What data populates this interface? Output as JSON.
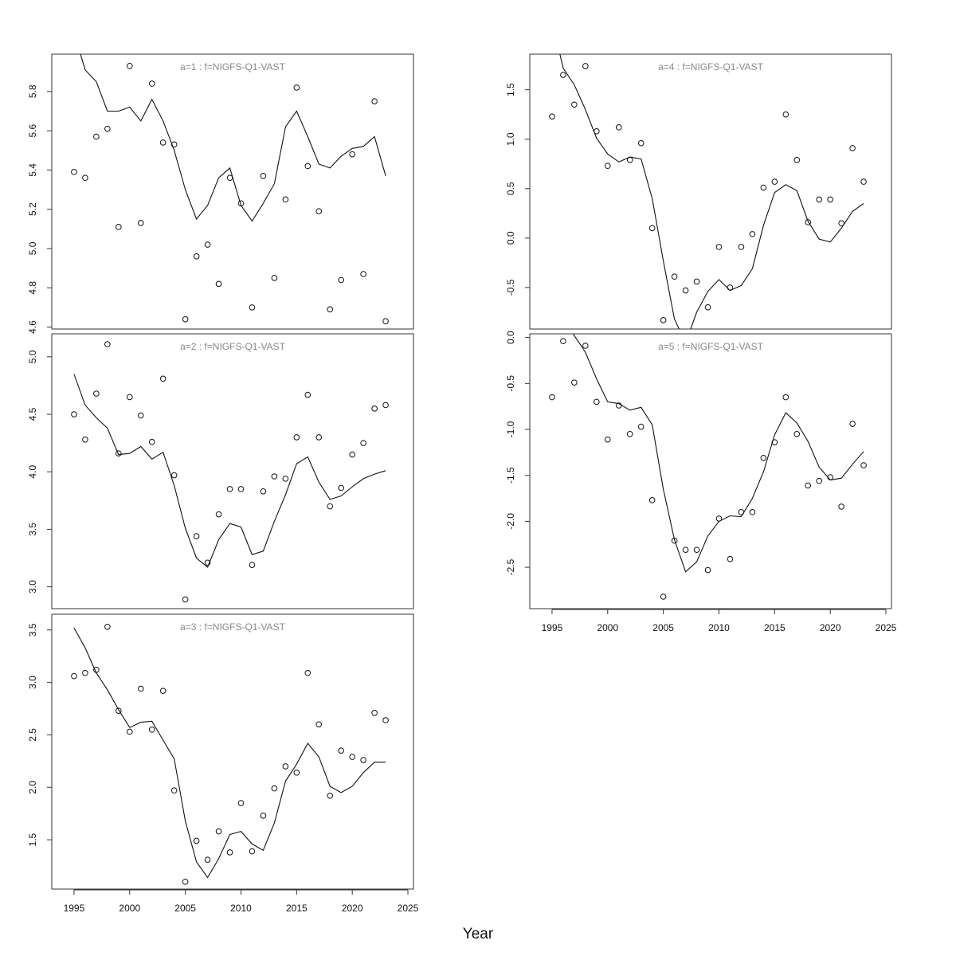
{
  "xlabel": "Year",
  "chart_data": [
    {
      "type": "scatter+line",
      "title": "a=1  :  f=NIGFS-Q1-VAST",
      "xlim": [
        1993,
        2025.5
      ],
      "ylim": [
        4.59,
        5.99
      ],
      "xticks": [
        1995,
        2000,
        2005,
        2010,
        2015,
        2020,
        2025
      ],
      "yticks": [
        "4.6",
        "4.8",
        "5.0",
        "5.2",
        "5.4",
        "5.6",
        "5.8"
      ],
      "series": [
        {
          "kind": "observed",
          "x": [
            1995,
            1996,
            1997,
            1998,
            1999,
            2000,
            2001,
            2002,
            2003,
            2004,
            2005,
            2006,
            2007,
            2008,
            2009,
            2010,
            2011,
            2012,
            2013,
            2014,
            2015,
            2016,
            2017,
            2018,
            2019,
            2020,
            2021,
            2022,
            2023
          ],
          "values": [
            5.39,
            5.36,
            5.57,
            5.61,
            5.11,
            5.93,
            5.13,
            5.84,
            5.54,
            5.53,
            4.64,
            4.96,
            5.02,
            4.82,
            5.36,
            5.23,
            4.7,
            5.37,
            4.85,
            5.25,
            5.82,
            5.42,
            5.19,
            4.69,
            4.84,
            5.48,
            4.87,
            5.75,
            4.63
          ]
        },
        {
          "kind": "fitted",
          "x": [
            1995,
            1996,
            1997,
            1998,
            1999,
            2000,
            2001,
            2002,
            2003,
            2004,
            2005,
            2006,
            2007,
            2008,
            2009,
            2010,
            2011,
            2012,
            2013,
            2014,
            2015,
            2016,
            2017,
            2018,
            2019,
            2020,
            2021,
            2022,
            2023
          ],
          "values": [
            6.1,
            5.91,
            5.85,
            5.7,
            5.7,
            5.72,
            5.65,
            5.76,
            5.65,
            5.5,
            5.3,
            5.15,
            5.22,
            5.36,
            5.41,
            5.22,
            5.14,
            5.23,
            5.33,
            5.62,
            5.7,
            5.57,
            5.43,
            5.41,
            5.47,
            5.51,
            5.52,
            5.57,
            5.37
          ]
        }
      ]
    },
    {
      "type": "scatter+line",
      "title": "a=2  :  f=NIGFS-Q1-VAST",
      "xlim": [
        1993,
        2025.5
      ],
      "ylim": [
        2.81,
        5.2
      ],
      "xticks": [
        1995,
        2000,
        2005,
        2010,
        2015,
        2020,
        2025
      ],
      "yticks": [
        "3.0",
        "3.5",
        "4.0",
        "4.5",
        "5.0"
      ],
      "series": [
        {
          "kind": "observed",
          "x": [
            1995,
            1996,
            1997,
            1998,
            1999,
            2000,
            2001,
            2002,
            2003,
            2004,
            2005,
            2006,
            2007,
            2008,
            2009,
            2010,
            2011,
            2012,
            2013,
            2014,
            2015,
            2016,
            2017,
            2018,
            2019,
            2020,
            2021,
            2022,
            2023
          ],
          "values": [
            4.5,
            4.28,
            4.68,
            5.11,
            4.16,
            4.65,
            4.49,
            4.26,
            4.81,
            3.97,
            2.89,
            3.44,
            3.21,
            3.63,
            3.85,
            3.85,
            3.19,
            3.83,
            3.96,
            3.94,
            4.3,
            4.67,
            4.3,
            3.7,
            3.86,
            4.15,
            4.25,
            4.55,
            4.58
          ]
        },
        {
          "kind": "fitted",
          "x": [
            1995,
            1996,
            1997,
            1998,
            1999,
            2000,
            2001,
            2002,
            2003,
            2004,
            2005,
            2006,
            2007,
            2008,
            2009,
            2010,
            2011,
            2012,
            2013,
            2014,
            2015,
            2016,
            2017,
            2018,
            2019,
            2020,
            2021,
            2022,
            2023
          ],
          "values": [
            4.85,
            4.58,
            4.47,
            4.38,
            4.15,
            4.16,
            4.22,
            4.11,
            4.17,
            3.88,
            3.51,
            3.25,
            3.17,
            3.41,
            3.55,
            3.52,
            3.28,
            3.31,
            3.57,
            3.8,
            4.07,
            4.13,
            3.91,
            3.76,
            3.79,
            3.87,
            3.94,
            3.98,
            4.01
          ]
        }
      ]
    },
    {
      "type": "scatter+line",
      "title": "a=3  :  f=NIGFS-Q1-VAST",
      "xlim": [
        1993,
        2025.5
      ],
      "ylim": [
        1.03,
        3.65
      ],
      "xticks": [
        1995,
        2000,
        2005,
        2010,
        2015,
        2020,
        2025
      ],
      "yticks": [
        "1.5",
        "2.0",
        "2.5",
        "3.0",
        "3.5"
      ],
      "series": [
        {
          "kind": "observed",
          "x": [
            1995,
            1996,
            1997,
            1998,
            1999,
            2000,
            2001,
            2002,
            2003,
            2004,
            2005,
            2006,
            2007,
            2008,
            2009,
            2010,
            2011,
            2012,
            2013,
            2014,
            2015,
            2016,
            2017,
            2018,
            2019,
            2020,
            2021,
            2022,
            2023
          ],
          "values": [
            3.06,
            3.09,
            3.12,
            3.53,
            2.73,
            2.53,
            2.94,
            2.55,
            2.92,
            1.97,
            1.1,
            1.49,
            1.31,
            1.58,
            1.38,
            1.85,
            1.39,
            1.73,
            1.99,
            2.2,
            2.14,
            3.09,
            2.6,
            1.92,
            2.35,
            2.29,
            2.26,
            2.71,
            2.64
          ]
        },
        {
          "kind": "fitted",
          "x": [
            1995,
            1996,
            1997,
            1998,
            1999,
            2000,
            2001,
            2002,
            2003,
            2004,
            2005,
            2006,
            2007,
            2008,
            2009,
            2010,
            2011,
            2012,
            2013,
            2014,
            2015,
            2016,
            2017,
            2018,
            2019,
            2020,
            2021,
            2022,
            2023
          ],
          "values": [
            3.52,
            3.33,
            3.09,
            2.93,
            2.74,
            2.57,
            2.62,
            2.63,
            2.45,
            2.27,
            1.68,
            1.29,
            1.14,
            1.32,
            1.55,
            1.58,
            1.46,
            1.4,
            1.66,
            2.06,
            2.22,
            2.42,
            2.29,
            2.01,
            1.95,
            2.01,
            2.14,
            2.24,
            2.24
          ]
        }
      ]
    },
    {
      "type": "scatter+line",
      "title": "a=4  :  f=NIGFS-Q1-VAST",
      "xlim": [
        1993,
        2025.5
      ],
      "ylim": [
        -0.92,
        1.86
      ],
      "xticks": [
        1995,
        2000,
        2005,
        2010,
        2015,
        2020,
        2025
      ],
      "yticks": [
        "-0.5",
        "0.0",
        "0.5",
        "1.0",
        "1.5"
      ],
      "series": [
        {
          "kind": "observed",
          "x": [
            1995,
            1996,
            1997,
            1998,
            1999,
            2000,
            2001,
            2002,
            2003,
            2004,
            2005,
            2006,
            2007,
            2008,
            2009,
            2010,
            2011,
            2012,
            2013,
            2014,
            2015,
            2016,
            2017,
            2018,
            2019,
            2020,
            2021,
            2022,
            2023
          ],
          "values": [
            1.23,
            1.65,
            1.35,
            1.74,
            1.08,
            0.73,
            1.12,
            0.79,
            0.96,
            0.1,
            -0.83,
            -0.39,
            -0.53,
            -0.44,
            -0.7,
            -0.09,
            -0.5,
            -0.09,
            0.04,
            0.51,
            0.57,
            1.25,
            0.79,
            0.16,
            0.39,
            0.39,
            0.15,
            0.91,
            0.57
          ]
        },
        {
          "kind": "fitted",
          "x": [
            1995,
            1996,
            1997,
            1998,
            1999,
            2000,
            2001,
            2002,
            2003,
            2004,
            2005,
            2006,
            2007,
            2008,
            2009,
            2010,
            2011,
            2012,
            2013,
            2014,
            2015,
            2016,
            2017,
            2018,
            2019,
            2020,
            2021,
            2022,
            2023
          ],
          "values": [
            2.2,
            1.72,
            1.55,
            1.3,
            1.01,
            0.85,
            0.77,
            0.82,
            0.8,
            0.4,
            -0.23,
            -0.82,
            -1.06,
            -0.75,
            -0.54,
            -0.42,
            -0.53,
            -0.48,
            -0.31,
            0.13,
            0.46,
            0.54,
            0.48,
            0.17,
            -0.01,
            -0.04,
            0.1,
            0.27,
            0.35
          ]
        }
      ]
    },
    {
      "type": "scatter+line",
      "title": "a=5  :  f=NIGFS-Q1-VAST",
      "xlim": [
        1993,
        2025.5
      ],
      "ylim": [
        -2.95,
        0.04
      ],
      "xticks": [
        1995,
        2000,
        2005,
        2010,
        2015,
        2020,
        2025
      ],
      "yticks": [
        "-2.5",
        "-2.0",
        "-1.5",
        "-1.0",
        "-0.5",
        "0.0"
      ],
      "series": [
        {
          "kind": "observed",
          "x": [
            1995,
            1996,
            1997,
            1998,
            1999,
            2000,
            2001,
            2002,
            2003,
            2004,
            2005,
            2006,
            2007,
            2008,
            2009,
            2010,
            2011,
            2012,
            2013,
            2014,
            2015,
            2016,
            2017,
            2018,
            2019,
            2020,
            2021,
            2022,
            2023
          ],
          "values": [
            -0.65,
            -0.04,
            -0.49,
            -0.09,
            -0.7,
            -1.11,
            -0.74,
            -1.05,
            -0.97,
            -1.77,
            -2.82,
            -2.21,
            -2.31,
            -2.31,
            -2.53,
            -1.97,
            -2.41,
            -1.9,
            -1.9,
            -1.31,
            -1.14,
            -0.65,
            -1.05,
            -1.61,
            -1.56,
            -1.52,
            -1.84,
            -0.94,
            -1.39
          ]
        },
        {
          "kind": "fitted",
          "x": [
            1995,
            1996,
            1997,
            1998,
            1999,
            2000,
            2001,
            2002,
            2003,
            2004,
            2005,
            2006,
            2007,
            2008,
            2009,
            2010,
            2011,
            2012,
            2013,
            2014,
            2015,
            2016,
            2017,
            2018,
            2019,
            2020,
            2021,
            2022,
            2023
          ],
          "values": [
            0.4,
            0.2,
            0.02,
            -0.16,
            -0.45,
            -0.7,
            -0.72,
            -0.79,
            -0.76,
            -0.95,
            -1.65,
            -2.2,
            -2.55,
            -2.44,
            -2.16,
            -2.0,
            -1.94,
            -1.95,
            -1.75,
            -1.46,
            -1.06,
            -0.82,
            -0.93,
            -1.13,
            -1.41,
            -1.55,
            -1.53,
            -1.38,
            -1.24
          ]
        }
      ]
    }
  ]
}
